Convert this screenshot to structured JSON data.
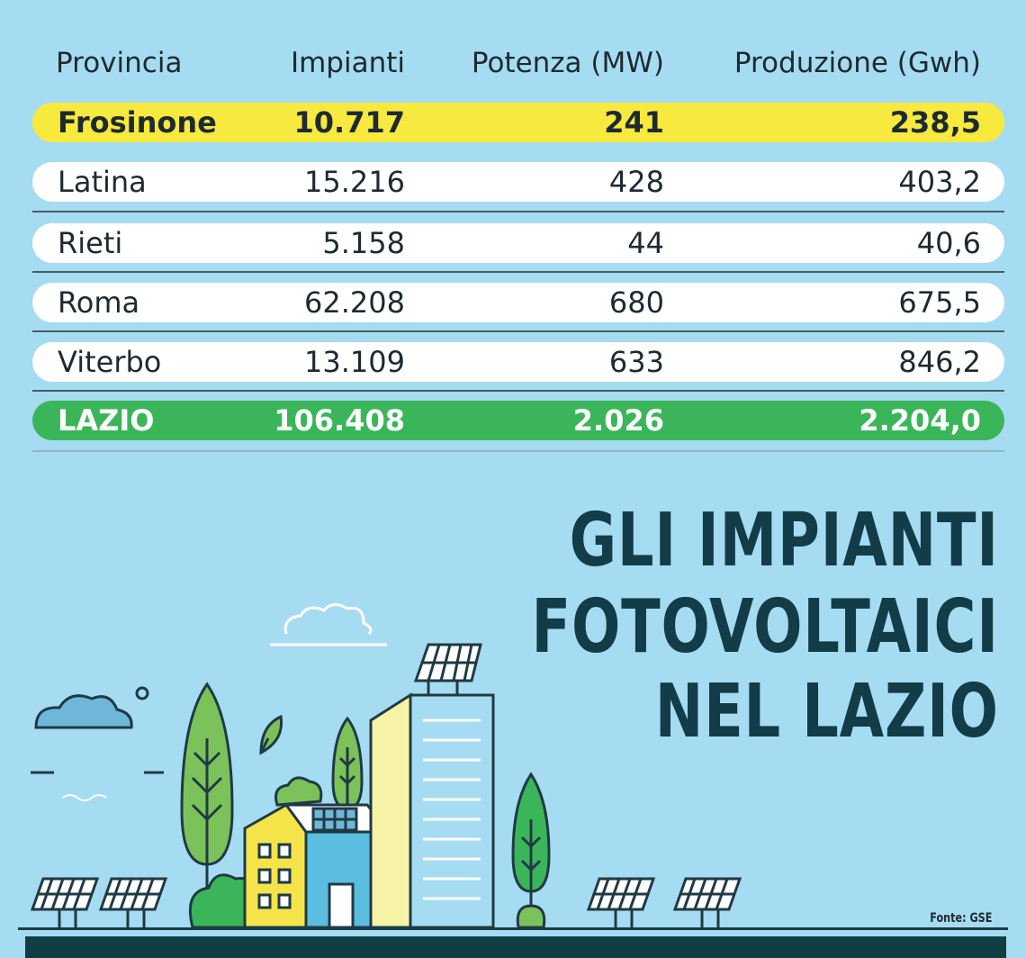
{
  "chart_data": {
    "type": "table",
    "columns": [
      "Provincia",
      "Impianti",
      "Potenza (MW)",
      "Produzione (Gwh)"
    ],
    "rows": [
      {
        "provincia": "Frosinone",
        "impianti": "10.717",
        "potenza": "241",
        "produzione": "238,5",
        "highlight": "#f7e93e"
      },
      {
        "provincia": "Latina",
        "impianti": "15.216",
        "potenza": "428",
        "produzione": "403,2"
      },
      {
        "provincia": "Rieti",
        "impianti": "5.158",
        "potenza": "44",
        "produzione": "40,6"
      },
      {
        "provincia": "Roma",
        "impianti": "62.208",
        "potenza": "680",
        "produzione": "675,5"
      },
      {
        "provincia": "Viterbo",
        "impianti": "13.109",
        "potenza": "633",
        "produzione": "846,2"
      },
      {
        "provincia": "LAZIO",
        "impianti": "106.408",
        "potenza": "2.026",
        "produzione": "2.204,0",
        "highlight": "#3bb559"
      }
    ]
  },
  "title_lines": [
    "GLI IMPIANTI",
    "FOTOVOLTAICI",
    "NEL LAZIO"
  ],
  "source": "Fonte: GSE",
  "colors": {
    "background": "#a6dcf1",
    "title": "#133c49",
    "frosinone_highlight": "#f7e93e",
    "total_highlight": "#3bb559",
    "bottom_bar": "#0f3f43"
  }
}
